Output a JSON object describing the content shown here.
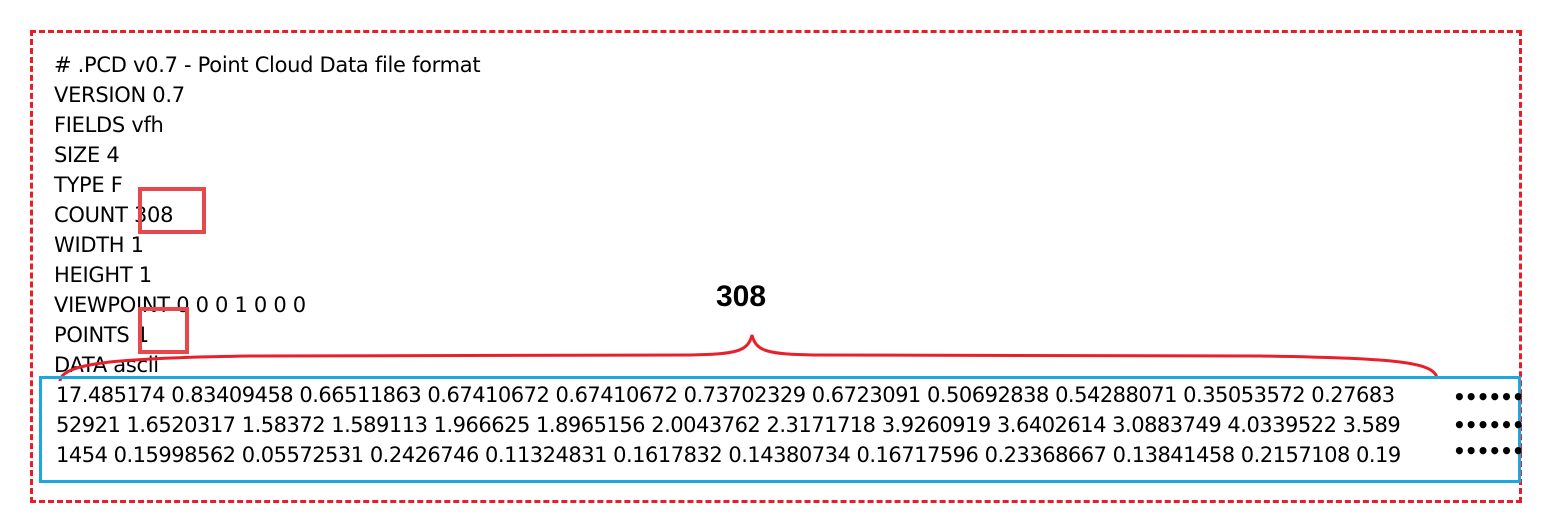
{
  "header_lines": [
    "# .PCD v0.7 - Point Cloud Data file format",
    "VERSION 0.7",
    "FIELDS vfh",
    "SIZE 4",
    "TYPE F",
    "COUNT 308",
    "WIDTH 1",
    "HEIGHT 1",
    "VIEWPOINT 0 0 0 1 0 0 0",
    "POINTS 1",
    "DATA ascii"
  ],
  "data_lines": [
    "17.485174 0.83409458 0.66511863 0.67410672 0.67410672 0.73702329 0.6723091 0.50692838 0.54288071 0.35053572 0.27683",
    "52921 1.6520317 1.58372 1.589113 1.966625 1.8965156 2.0043762 2.3171718 3.9260919 3.6402614 3.0883749 4.0339522 3.589",
    "1454 0.15998562 0.05572531 0.2426746 0.11324831 0.1617832 0.14380734 0.16717596 0.23368667 0.13841458 0.2157108 0.19"
  ],
  "ellipsis": "••••••",
  "brace_label": "308",
  "colors": {
    "outer_frame": "#e81d27",
    "highlight": "#e8474b",
    "data_frame": "#1da7e0",
    "brace": "#e8202a"
  }
}
